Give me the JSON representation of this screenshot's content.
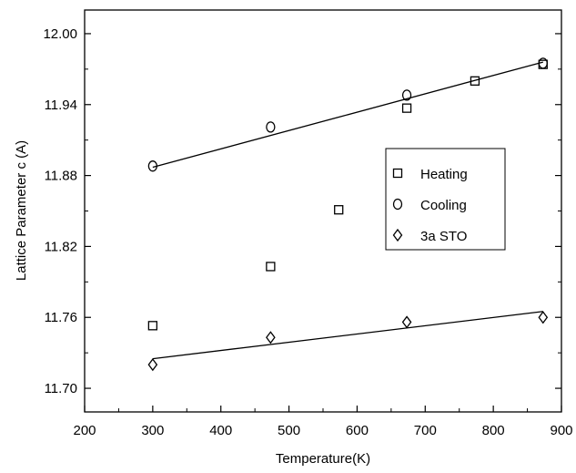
{
  "chart_data": {
    "type": "scatter",
    "xlabel": "Temperature(K)",
    "ylabel": "Lattice Parameter c (A)",
    "xlim": [
      200,
      900
    ],
    "ylim": [
      11.68,
      12.02
    ],
    "xticks": [
      200,
      300,
      400,
      500,
      600,
      700,
      800,
      900
    ],
    "xtick_labels": [
      "200",
      "300",
      "400",
      "500",
      "600",
      "700",
      "800",
      "900"
    ],
    "yticks": [
      11.7,
      11.76,
      11.82,
      11.88,
      11.94,
      12.0
    ],
    "ytick_labels": [
      "11.70",
      "11.76",
      "11.82",
      "11.88",
      "11.94",
      "12.00"
    ],
    "legend_position": "right",
    "grid": false,
    "series": [
      {
        "name": "Heating",
        "marker": "square",
        "points": [
          {
            "x": 300,
            "y": 11.753
          },
          {
            "x": 473,
            "y": 11.803
          },
          {
            "x": 573,
            "y": 11.851
          },
          {
            "x": 673,
            "y": 11.937
          },
          {
            "x": 773,
            "y": 11.96
          },
          {
            "x": 873,
            "y": 11.974
          }
        ]
      },
      {
        "name": "Cooling",
        "marker": "circle",
        "points": [
          {
            "x": 300,
            "y": 11.888
          },
          {
            "x": 473,
            "y": 11.921
          },
          {
            "x": 673,
            "y": 11.948
          },
          {
            "x": 873,
            "y": 11.975
          }
        ]
      },
      {
        "name": "3a STO",
        "marker": "diamond",
        "points": [
          {
            "x": 300,
            "y": 11.72
          },
          {
            "x": 473,
            "y": 11.743
          },
          {
            "x": 673,
            "y": 11.756
          },
          {
            "x": 873,
            "y": 11.76
          }
        ]
      }
    ],
    "fit_lines": [
      {
        "x": [
          300,
          873
        ],
        "y": [
          11.887,
          11.976
        ]
      },
      {
        "x": [
          300,
          873
        ],
        "y": [
          11.725,
          11.765
        ]
      }
    ]
  }
}
